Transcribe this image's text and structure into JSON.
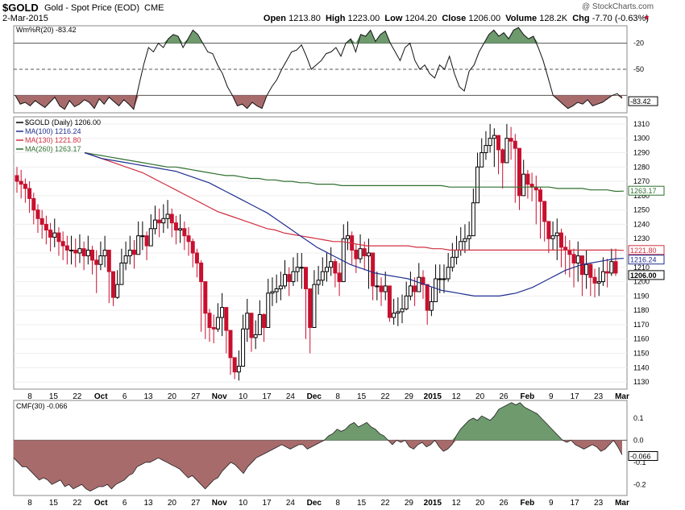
{
  "header": {
    "symbol": "$GOLD",
    "name": "Gold - Spot Price (EOD)",
    "exchange": "CME",
    "date": "2-Mar-2015",
    "open_label": "Open",
    "open": "1213.80",
    "high_label": "High",
    "high": "1223.00",
    "low_label": "Low",
    "low": "1204.20",
    "close_label": "Close",
    "close": "1206.00",
    "volume_label": "Volume",
    "volume": "128.2K",
    "chg_label": "Chg",
    "chg": "-7.70 (-0.63%)",
    "watermark": "@ StockCharts.com"
  },
  "colors": {
    "up": "#000000",
    "down": "#c8102e",
    "ma100": "#1f2f8f",
    "ma130": "#d03040",
    "ma260": "#2f6f2f",
    "pos_fill": "#6e9a6e",
    "neg_fill": "#a86b6b"
  },
  "chart_data": [
    {
      "type": "line",
      "title": "Wm%R(20) -83.42",
      "ylim": [
        -100,
        0
      ],
      "levels": [
        -20,
        -50,
        -80
      ],
      "tick_labels": [
        "-20",
        "-50"
      ],
      "last_value_label": "-83.42",
      "values": [
        -80,
        -90,
        -88,
        -92,
        -86,
        -90,
        -94,
        -88,
        -82,
        -92,
        -96,
        -86,
        -93,
        -90,
        -85,
        -88,
        -95,
        -84,
        -90,
        -82,
        -87,
        -92,
        -85,
        -90,
        -96,
        -70,
        -45,
        -25,
        -30,
        -20,
        -25,
        -15,
        -10,
        -12,
        -25,
        -15,
        -5,
        -10,
        -20,
        -30,
        -32,
        -45,
        -55,
        -70,
        -80,
        -92,
        -90,
        -95,
        -88,
        -92,
        -95,
        -80,
        -70,
        -62,
        -50,
        -40,
        -30,
        -28,
        -22,
        -35,
        -50,
        -45,
        -40,
        -32,
        -30,
        -25,
        -35,
        -20,
        -15,
        -30,
        -10,
        -12,
        -5,
        -18,
        -10,
        -6,
        -20,
        -30,
        -40,
        -25,
        -20,
        -40,
        -50,
        -45,
        -55,
        -60,
        -45,
        -50,
        -35,
        -55,
        -70,
        -75,
        -52,
        -45,
        -30,
        -20,
        -10,
        -5,
        -12,
        -8,
        -15,
        -5,
        -2,
        -10,
        -15,
        -12,
        -25,
        -40,
        -60,
        -80,
        -85,
        -90,
        -95,
        -92,
        -88,
        -90,
        -85,
        -92,
        -90,
        -88,
        -84,
        -80,
        -78,
        -83.42
      ]
    },
    {
      "type": "candlestick",
      "title": "$GOLD (Daily) 1206.00",
      "ylim": [
        1125,
        1315
      ],
      "yticks": [
        1130,
        1140,
        1150,
        1160,
        1170,
        1180,
        1190,
        1200,
        1210,
        1220,
        1230,
        1240,
        1250,
        1260,
        1270,
        1280,
        1290,
        1300,
        1310
      ],
      "xlabels": [
        "8",
        "15",
        "22",
        "Oct",
        "6",
        "13",
        "20",
        "27",
        "Nov",
        "10",
        "17",
        "24",
        "Dec",
        "8",
        "15",
        "22",
        "29",
        "2015",
        "12",
        "20",
        "26",
        "Feb",
        "9",
        "17",
        "23",
        "Mar"
      ],
      "closes": [
        1270,
        1268,
        1265,
        1258,
        1250,
        1244,
        1240,
        1236,
        1231,
        1234,
        1228,
        1225,
        1222,
        1222,
        1220,
        1223,
        1218,
        1222,
        1215,
        1212,
        1218,
        1222,
        1207,
        1189,
        1198,
        1213,
        1218,
        1222,
        1219,
        1232,
        1232,
        1225,
        1237,
        1243,
        1241,
        1244,
        1247,
        1241,
        1236,
        1237,
        1232,
        1228,
        1220,
        1213,
        1200,
        1178,
        1168,
        1167,
        1175,
        1182,
        1166,
        1147,
        1137,
        1141,
        1167,
        1178,
        1161,
        1163,
        1177,
        1168,
        1192,
        1193,
        1195,
        1197,
        1205,
        1200,
        1207,
        1210,
        1210,
        1195,
        1168,
        1198,
        1201,
        1207,
        1210,
        1214,
        1206,
        1200,
        1230,
        1232,
        1222,
        1216,
        1223,
        1218,
        1220,
        1197,
        1197,
        1193,
        1197,
        1175,
        1178,
        1179,
        1181,
        1190,
        1197,
        1193,
        1203,
        1198,
        1180,
        1186,
        1202,
        1202,
        1202,
        1210,
        1217,
        1222,
        1228,
        1230,
        1232,
        1255,
        1280,
        1290,
        1295,
        1300,
        1302,
        1292,
        1283,
        1300,
        1298,
        1293,
        1260,
        1275,
        1268,
        1266,
        1264,
        1256,
        1242,
        1230,
        1232,
        1234,
        1224,
        1222,
        1219,
        1213,
        1218,
        1205,
        1212,
        1203,
        1199,
        1200,
        1207,
        1206,
        1214,
        1206
      ],
      "highs": [
        1280,
        1278,
        1272,
        1270,
        1262,
        1254,
        1250,
        1246,
        1241,
        1244,
        1238,
        1235,
        1232,
        1232,
        1230,
        1233,
        1228,
        1232,
        1225,
        1222,
        1228,
        1232,
        1220,
        1205,
        1208,
        1223,
        1228,
        1232,
        1229,
        1242,
        1242,
        1235,
        1247,
        1253,
        1251,
        1254,
        1257,
        1251,
        1246,
        1247,
        1242,
        1238,
        1230,
        1223,
        1215,
        1195,
        1181,
        1177,
        1185,
        1192,
        1179,
        1160,
        1147,
        1152,
        1177,
        1188,
        1174,
        1173,
        1187,
        1178,
        1202,
        1203,
        1205,
        1207,
        1215,
        1210,
        1217,
        1220,
        1220,
        1208,
        1181,
        1208,
        1211,
        1217,
        1220,
        1224,
        1216,
        1213,
        1240,
        1242,
        1235,
        1226,
        1233,
        1228,
        1230,
        1210,
        1207,
        1203,
        1207,
        1188,
        1188,
        1189,
        1191,
        1200,
        1207,
        1203,
        1213,
        1208,
        1193,
        1196,
        1212,
        1212,
        1212,
        1220,
        1227,
        1232,
        1238,
        1240,
        1242,
        1265,
        1290,
        1300,
        1305,
        1310,
        1307,
        1302,
        1293,
        1310,
        1308,
        1303,
        1273,
        1285,
        1278,
        1276,
        1274,
        1266,
        1255,
        1240,
        1242,
        1244,
        1237,
        1232,
        1229,
        1223,
        1228,
        1218,
        1222,
        1213,
        1209,
        1210,
        1217,
        1216,
        1223,
        1223
      ],
      "lows": [
        1262,
        1258,
        1255,
        1248,
        1240,
        1234,
        1230,
        1226,
        1221,
        1224,
        1218,
        1215,
        1212,
        1212,
        1210,
        1213,
        1208,
        1212,
        1205,
        1192,
        1208,
        1210,
        1185,
        1183,
        1188,
        1203,
        1208,
        1212,
        1209,
        1222,
        1222,
        1215,
        1227,
        1233,
        1231,
        1234,
        1237,
        1231,
        1226,
        1227,
        1222,
        1218,
        1210,
        1203,
        1165,
        1160,
        1158,
        1157,
        1165,
        1162,
        1150,
        1135,
        1132,
        1131,
        1157,
        1158,
        1151,
        1153,
        1167,
        1158,
        1182,
        1183,
        1185,
        1187,
        1195,
        1190,
        1197,
        1200,
        1195,
        1160,
        1150,
        1188,
        1191,
        1197,
        1200,
        1204,
        1196,
        1190,
        1220,
        1222,
        1212,
        1206,
        1213,
        1208,
        1195,
        1187,
        1187,
        1183,
        1187,
        1172,
        1170,
        1169,
        1171,
        1180,
        1187,
        1183,
        1193,
        1188,
        1170,
        1176,
        1192,
        1192,
        1192,
        1200,
        1207,
        1212,
        1218,
        1220,
        1222,
        1245,
        1270,
        1280,
        1285,
        1290,
        1280,
        1275,
        1265,
        1290,
        1285,
        1255,
        1250,
        1265,
        1258,
        1256,
        1240,
        1230,
        1228,
        1220,
        1222,
        1215,
        1210,
        1205,
        1203,
        1196,
        1200,
        1190,
        1195,
        1190,
        1189,
        1190,
        1197,
        1196,
        1204,
        1204
      ],
      "ma100": [
        1290,
        1288,
        1286,
        1285,
        1284,
        1283,
        1282,
        1281,
        1280,
        1279,
        1278,
        1277,
        1275,
        1273,
        1271,
        1269,
        1266,
        1263,
        1260,
        1257,
        1254,
        1251,
        1248,
        1244,
        1240,
        1236,
        1232,
        1228,
        1224,
        1221,
        1218,
        1215,
        1212,
        1210,
        1208,
        1206,
        1205,
        1204,
        1203,
        1202,
        1200,
        1198,
        1196,
        1194,
        1193,
        1192,
        1191,
        1190,
        1190,
        1190,
        1190,
        1191,
        1192,
        1194,
        1196,
        1199,
        1202,
        1205,
        1208,
        1210,
        1212,
        1213,
        1214,
        1215,
        1216,
        1216.24
      ],
      "ma130": [
        1290,
        1288,
        1286,
        1284,
        1282,
        1280,
        1278,
        1276,
        1273,
        1270,
        1267,
        1264,
        1261,
        1258,
        1255,
        1252,
        1249,
        1247,
        1245,
        1243,
        1241,
        1239,
        1237,
        1236,
        1234,
        1233,
        1232,
        1231,
        1230,
        1229,
        1228,
        1228,
        1227,
        1226,
        1225,
        1225,
        1225,
        1225,
        1225,
        1225,
        1224,
        1224,
        1223,
        1223,
        1222,
        1222,
        1222,
        1222,
        1222,
        1222,
        1222,
        1222,
        1222,
        1222,
        1222,
        1222,
        1222,
        1222,
        1222,
        1222,
        1222,
        1222,
        1222,
        1222,
        1222,
        1221.8
      ],
      "ma260": [
        1290,
        1289,
        1288,
        1287,
        1286,
        1285,
        1284,
        1283,
        1282,
        1281,
        1280,
        1280,
        1279,
        1278,
        1277,
        1276,
        1275,
        1274,
        1274,
        1273,
        1272,
        1272,
        1271,
        1271,
        1270,
        1270,
        1269,
        1269,
        1268,
        1268,
        1268,
        1267,
        1267,
        1267,
        1267,
        1267,
        1267,
        1267,
        1267,
        1267,
        1267,
        1267,
        1267,
        1267,
        1266,
        1266,
        1266,
        1266,
        1266,
        1266,
        1266,
        1266,
        1266,
        1266,
        1266,
        1266,
        1266,
        1265,
        1265,
        1265,
        1265,
        1264,
        1264,
        1264,
        1263,
        1263.17
      ],
      "legend": [
        {
          "name": "$GOLD (Daily) 1206.00",
          "key": "price"
        },
        {
          "name": "MA(100) 1216.24",
          "key": "ma100"
        },
        {
          "name": "MA(130) 1221.80",
          "key": "ma130"
        },
        {
          "name": "MA(260) 1263.17",
          "key": "ma260"
        }
      ],
      "price_tags": [
        "1263.17",
        "1221.80",
        "1216.24",
        "1206.00"
      ]
    },
    {
      "type": "area",
      "title": "CMF(30) -0.066",
      "ylim": [
        -0.25,
        0.18
      ],
      "yticks": [
        0.1,
        0.0,
        -0.1,
        -0.2
      ],
      "ytick_labels": [
        "0.1",
        "0.0",
        "-0.1",
        "-0.2"
      ],
      "last_value_label": "-0.066",
      "values": [
        -0.08,
        -0.1,
        -0.12,
        -0.12,
        -0.14,
        -0.16,
        -0.18,
        -0.17,
        -0.18,
        -0.2,
        -0.19,
        -0.18,
        -0.21,
        -0.2,
        -0.22,
        -0.21,
        -0.2,
        -0.22,
        -0.23,
        -0.22,
        -0.21,
        -0.21,
        -0.2,
        -0.22,
        -0.2,
        -0.19,
        -0.18,
        -0.16,
        -0.15,
        -0.12,
        -0.11,
        -0.1,
        -0.1,
        -0.09,
        -0.08,
        -0.09,
        -0.1,
        -0.11,
        -0.12,
        -0.13,
        -0.15,
        -0.17,
        -0.16,
        -0.18,
        -0.2,
        -0.22,
        -0.2,
        -0.18,
        -0.17,
        -0.14,
        -0.12,
        -0.1,
        -0.11,
        -0.13,
        -0.15,
        -0.12,
        -0.1,
        -0.08,
        -0.07,
        -0.06,
        -0.05,
        -0.04,
        -0.03,
        -0.02,
        -0.03,
        -0.04,
        -0.03,
        -0.02,
        -0.02,
        -0.04,
        -0.03,
        -0.02,
        -0.01,
        0.0,
        0.02,
        0.03,
        0.05,
        0.04,
        0.05,
        0.07,
        0.08,
        0.06,
        0.07,
        0.08,
        0.06,
        0.05,
        0.03,
        0.02,
        0.0,
        -0.02,
        0.0,
        -0.01,
        0.0,
        -0.03,
        -0.04,
        -0.02,
        -0.01,
        -0.03,
        -0.02,
        0.0,
        -0.03,
        -0.05,
        -0.04,
        -0.02,
        0.02,
        0.05,
        0.07,
        0.09,
        0.1,
        0.09,
        0.11,
        0.1,
        0.09,
        0.11,
        0.14,
        0.15,
        0.16,
        0.17,
        0.16,
        0.17,
        0.15,
        0.14,
        0.13,
        0.12,
        0.1,
        0.08,
        0.06,
        0.04,
        0.02,
        0.0,
        -0.01,
        0.0,
        -0.02,
        -0.03,
        -0.04,
        -0.03,
        -0.02,
        -0.03,
        -0.05,
        -0.04,
        -0.02,
        0.0,
        -0.03,
        -0.066
      ]
    }
  ]
}
